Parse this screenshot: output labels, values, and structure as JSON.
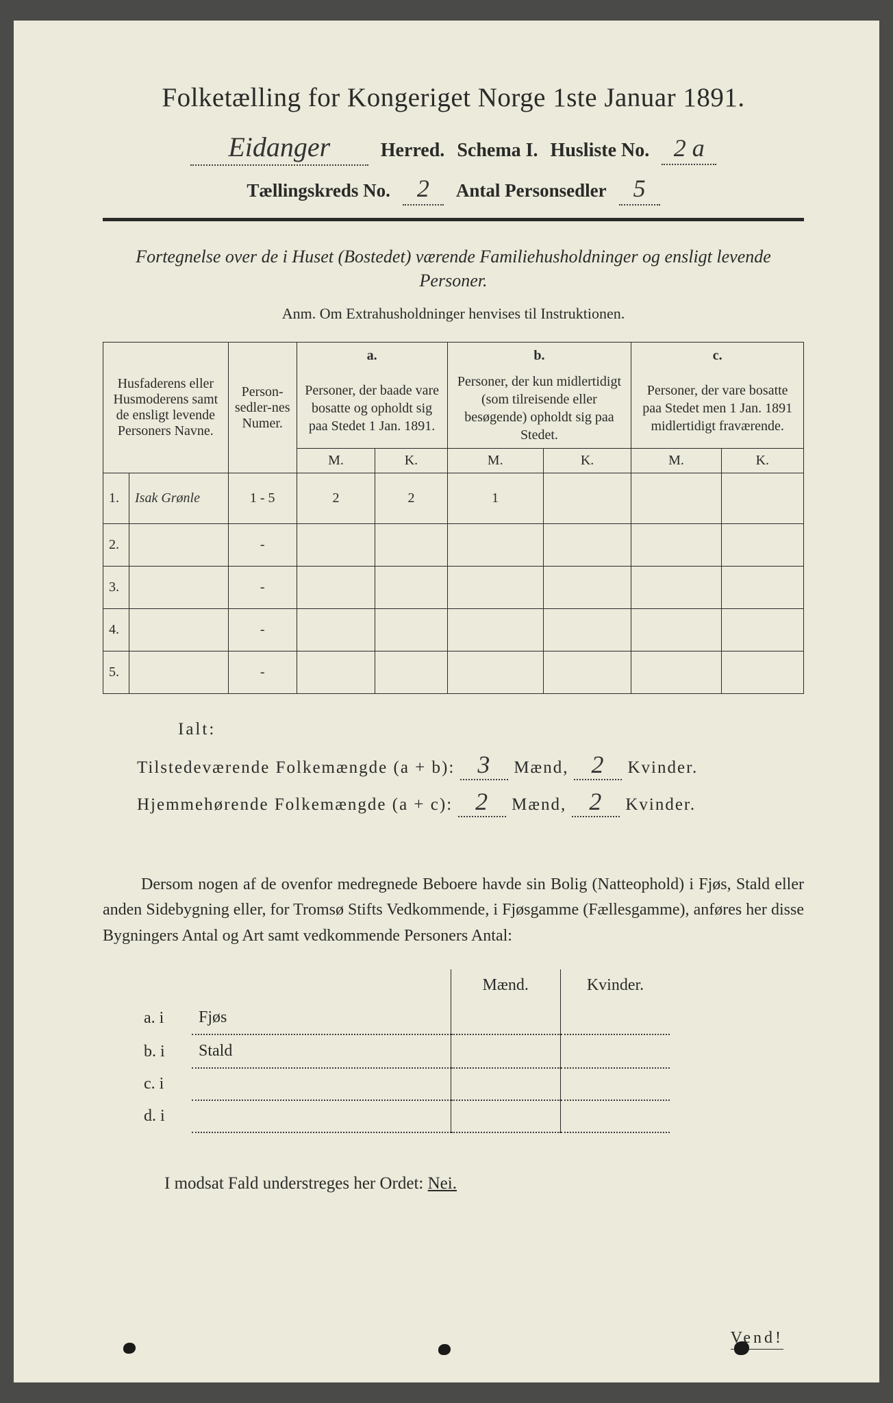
{
  "page_bg": "#ebeadb",
  "text_color": "#2a2a28",
  "title": "Folketælling for Kongeriget Norge 1ste Januar 1891.",
  "header": {
    "herred_value": "Eidanger",
    "herred_label": "Herred.",
    "schema_label": "Schema I.",
    "husliste_label": "Husliste No.",
    "husliste_value": "2 a",
    "kreds_label": "Tællingskreds No.",
    "kreds_value": "2",
    "antal_label": "Antal Personsedler",
    "antal_value": "5"
  },
  "intro": "Fortegnelse over de i Huset (Bostedet) værende Familiehusholdninger og ensligt levende Personer.",
  "anm": "Anm.  Om Extrahusholdninger henvises til Instruktionen.",
  "table": {
    "col_names": "Husfaderens eller Husmoderens samt de ensligt levende Personers Navne.",
    "col_numer": "Person-sedler-nes Numer.",
    "col_a_label": "a.",
    "col_a": "Personer, der baade vare bosatte og opholdt sig paa Stedet 1 Jan. 1891.",
    "col_b_label": "b.",
    "col_b": "Personer, der kun midlertidigt (som tilreisende eller besøgende) opholdt sig paa Stedet.",
    "col_c_label": "c.",
    "col_c": "Personer, der vare bosatte paa Stedet men 1 Jan. 1891 midlertidigt fraværende.",
    "m": "M.",
    "k": "K.",
    "rows": [
      {
        "n": "1.",
        "name": "Isak Grønle",
        "num": "1 - 5",
        "am": "2",
        "ak": "2",
        "bm": "1",
        "bk": "",
        "cm": "",
        "ck": ""
      },
      {
        "n": "2.",
        "name": "",
        "num": "-",
        "am": "",
        "ak": "",
        "bm": "",
        "bk": "",
        "cm": "",
        "ck": ""
      },
      {
        "n": "3.",
        "name": "",
        "num": "-",
        "am": "",
        "ak": "",
        "bm": "",
        "bk": "",
        "cm": "",
        "ck": ""
      },
      {
        "n": "4.",
        "name": "",
        "num": "-",
        "am": "",
        "ak": "",
        "bm": "",
        "bk": "",
        "cm": "",
        "ck": ""
      },
      {
        "n": "5.",
        "name": "",
        "num": "-",
        "am": "",
        "ak": "",
        "bm": "",
        "bk": "",
        "cm": "",
        "ck": ""
      }
    ]
  },
  "totals": {
    "ialt": "Ialt:",
    "line1_label": "Tilstedeværende Folkemængde (a + b):",
    "line1_m": "3",
    "line1_k": "2",
    "line2_label": "Hjemmehørende Folkemængde (a + c):",
    "line2_m": "2",
    "line2_k": "2",
    "maend": "Mænd,",
    "kvinder": "Kvinder."
  },
  "para": "Dersom nogen af de ovenfor medregnede Beboere havde sin Bolig (Natteophold) i Fjøs, Stald eller anden Sidebygning eller, for Tromsø Stifts Vedkommende, i Fjøsgamme (Fællesgamme), anføres her disse Bygningers Antal og Art samt vedkommende Personers Antal:",
  "bottom_table": {
    "maend": "Mænd.",
    "kvinder": "Kvinder.",
    "rows": [
      {
        "l": "a.  i",
        "r": "Fjøs"
      },
      {
        "l": "b.  i",
        "r": "Stald"
      },
      {
        "l": "c.  i",
        "r": ""
      },
      {
        "l": "d.  i",
        "r": ""
      }
    ]
  },
  "nei": {
    "text": "I modsat Fald understreges her Ordet:",
    "word": "Nei."
  },
  "vend": "Vend!"
}
